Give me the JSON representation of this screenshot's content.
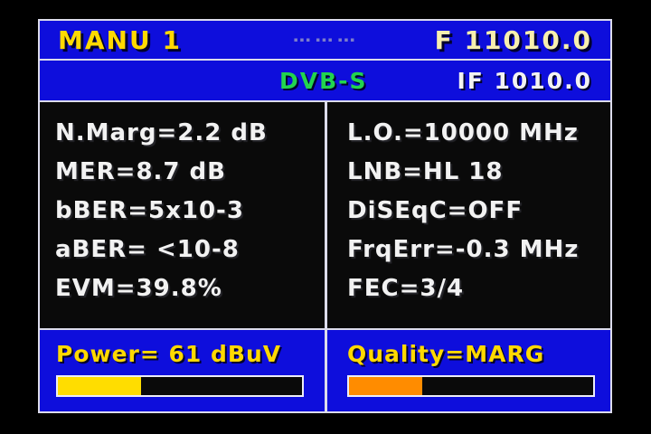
{
  "colors": {
    "bg-blue": "#0e0edc",
    "panel-black": "#0a0a0a",
    "frame-line": "#dcdcec",
    "yellow": "#ffd900",
    "pale-yellow": "#f7efae",
    "green": "#22d44e",
    "white-text": "#f2f2f2",
    "power-fill": "#ffdd00",
    "quality-fill": "#ff8c00",
    "bar-empty": "#0a0a0a"
  },
  "header": {
    "memory_label": "MANU 1",
    "status_marks": "▪▪▪ ▪▪▪ ▪▪▪",
    "frequency": "F 11010.0"
  },
  "subheader": {
    "standard": "DVB-S",
    "if_frequency": "IF 1010.0"
  },
  "readings": {
    "left": [
      "N.Marg=2.2 dB",
      "MER=8.7 dB",
      "bBER=5x10-3",
      "aBER= <10-8",
      "EVM=39.8%"
    ],
    "right": [
      "L.O.=10000 MHz",
      "LNB=HL 18",
      "DiSEqC=OFF",
      "FrqErr=-0.3 MHz",
      "FEC=3/4"
    ]
  },
  "meters": {
    "power": {
      "label": "Power= 61 dBuV",
      "percent": 34
    },
    "quality": {
      "label": "Quality=MARG",
      "percent": 30
    }
  }
}
